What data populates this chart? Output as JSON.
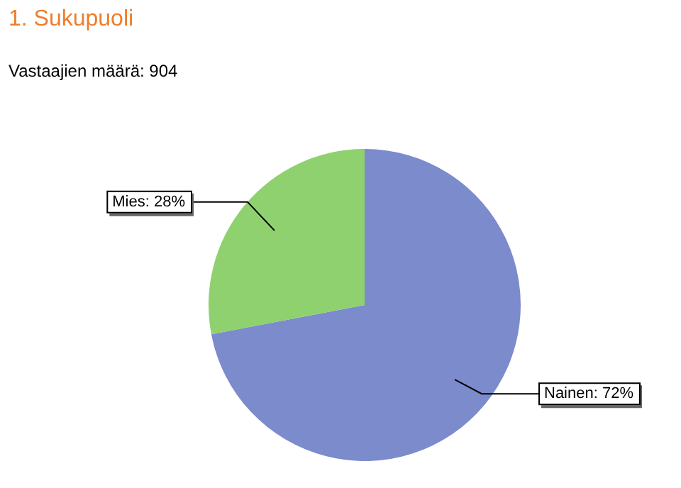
{
  "chart_data": {
    "type": "pie",
    "title": "1. Sukupuoli",
    "subtitle": "Vastaajien määrä: 904",
    "categories": [
      "Nainen",
      "Mies"
    ],
    "values": [
      72,
      28
    ],
    "colors": [
      "#7b8bcc",
      "#8fd16f"
    ],
    "value_labels": [
      "72%",
      "28%"
    ],
    "legend": false
  }
}
